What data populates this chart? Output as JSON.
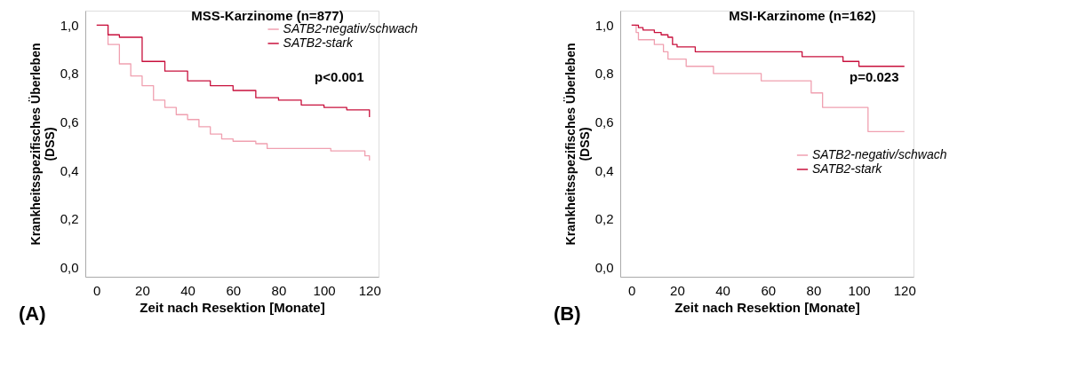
{
  "chart_data": [
    {
      "type": "step",
      "title": "MSS-Karzinome (n=877)",
      "xlabel": "Zeit nach Resektion [Monate]",
      "ylabel": "Krankheitsspezifisches Überleben\n(DSS)",
      "xlim": [
        -5,
        124
      ],
      "ylim": [
        -0.04,
        1.06
      ],
      "xticks": [
        0,
        20,
        40,
        60,
        80,
        100,
        120
      ],
      "yticks": [
        {
          "value": 0,
          "label": "0,0"
        },
        {
          "value": 0.2,
          "label": "0,2"
        },
        {
          "value": 0.4,
          "label": "0,4"
        },
        {
          "value": 0.6,
          "label": "0,6"
        },
        {
          "value": 0.8,
          "label": "0,8"
        },
        {
          "value": 1.0,
          "label": "1,0"
        }
      ],
      "grid": false,
      "legend": "top right",
      "annotations": [
        "p<0.001",
        "(A)"
      ],
      "series": [
        {
          "name": "SATB2-negativ/schwach",
          "color": "#f0a0b0",
          "x": [
            0,
            5,
            10,
            15,
            20,
            25,
            30,
            35,
            40,
            45,
            50,
            55,
            60,
            70,
            75,
            103,
            118,
            120
          ],
          "values": [
            1.0,
            0.92,
            0.84,
            0.79,
            0.75,
            0.69,
            0.66,
            0.63,
            0.61,
            0.58,
            0.55,
            0.53,
            0.52,
            0.51,
            0.49,
            0.48,
            0.46,
            0.44
          ]
        },
        {
          "name": "SATB2-stark",
          "color": "#c8103c",
          "x": [
            0,
            5,
            10,
            20,
            30,
            40,
            50,
            60,
            70,
            80,
            90,
            100,
            110,
            120
          ],
          "values": [
            1.0,
            0.96,
            0.95,
            0.85,
            0.81,
            0.77,
            0.75,
            0.73,
            0.7,
            0.69,
            0.67,
            0.66,
            0.65,
            0.62
          ]
        }
      ]
    },
    {
      "type": "step",
      "title": "MSI-Karzinome (n=162)",
      "xlabel": "Zeit nach Resektion [Monate]",
      "ylabel": "Krankheitsspezifisches Überleben\n(DSS)",
      "xlim": [
        -5,
        124
      ],
      "ylim": [
        -0.04,
        1.06
      ],
      "xticks": [
        0,
        20,
        40,
        60,
        80,
        100,
        120
      ],
      "yticks": [
        {
          "value": 0,
          "label": "0,0"
        },
        {
          "value": 0.2,
          "label": "0,2"
        },
        {
          "value": 0.4,
          "label": "0,4"
        },
        {
          "value": 0.6,
          "label": "0,6"
        },
        {
          "value": 0.8,
          "label": "0,8"
        },
        {
          "value": 1.0,
          "label": "1,0"
        }
      ],
      "grid": false,
      "legend": "right",
      "annotations": [
        "p=0.023",
        "(B)"
      ],
      "series": [
        {
          "name": "SATB2-negativ/schwach",
          "color": "#f0a0b0",
          "x": [
            0,
            2,
            3,
            10,
            14,
            16,
            24,
            36,
            57,
            79,
            84,
            104,
            120
          ],
          "values": [
            1.0,
            0.97,
            0.94,
            0.92,
            0.89,
            0.86,
            0.83,
            0.8,
            0.77,
            0.72,
            0.66,
            0.56,
            0.56
          ]
        },
        {
          "name": "SATB2-stark",
          "color": "#c8103c",
          "x": [
            0,
            3,
            5,
            10,
            13,
            16,
            18,
            20,
            28,
            75,
            93,
            100,
            120
          ],
          "values": [
            1.0,
            0.99,
            0.98,
            0.97,
            0.96,
            0.95,
            0.92,
            0.91,
            0.89,
            0.87,
            0.85,
            0.83,
            0.83
          ]
        }
      ]
    }
  ]
}
